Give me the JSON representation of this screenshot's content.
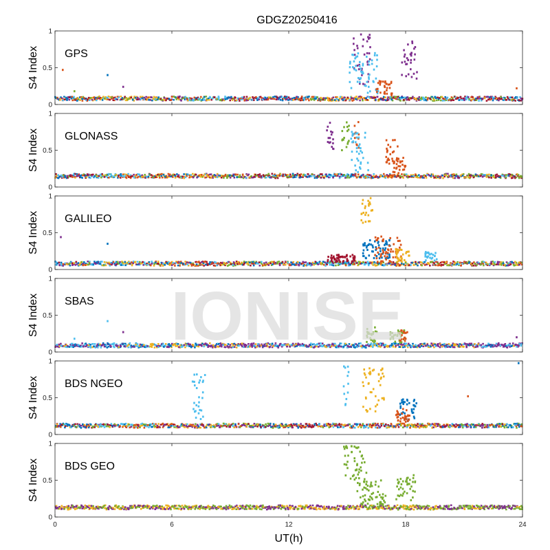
{
  "chart_data": {
    "type": "scatter",
    "title": "GDGZ20250416",
    "xlabel": "UT(h)",
    "ylabel": "S4 Index",
    "xlim": [
      0,
      24
    ],
    "ylim": [
      0,
      1
    ],
    "x_ticks": [
      "0",
      "6",
      "12",
      "18",
      "24"
    ],
    "y_ticks": [
      "0",
      "0.5",
      "1"
    ],
    "grid": false,
    "watermark": "IONISE",
    "series_colors": [
      "#0072BD",
      "#D95319",
      "#EDB120",
      "#7E2F8E",
      "#77AC30",
      "#4DBEEE",
      "#A2142F"
    ],
    "panels": [
      {
        "name": "GPS",
        "baseline": 0.08,
        "dominant_colors": [
          "#0072BD",
          "#D95319",
          "#EDB120",
          "#7E2F8E",
          "#77AC30",
          "#4DBEEE",
          "#A2142F"
        ],
        "spikes": [
          {
            "x": 0.4,
            "y": 0.47,
            "color": "#D95319"
          },
          {
            "x": 2.7,
            "y": 0.4,
            "color": "#0072BD"
          },
          {
            "x": 3.5,
            "y": 0.24,
            "color": "#7E2F8E"
          },
          {
            "x": 1.0,
            "y": 0.18,
            "color": "#77AC30"
          },
          {
            "x": 23.7,
            "y": 0.22,
            "color": "#D95319"
          }
        ],
        "events": [
          {
            "x0": 15.3,
            "x1": 16.2,
            "ymin": 0.2,
            "ymax": 0.97,
            "color": "#7E2F8E"
          },
          {
            "x0": 15.1,
            "x1": 16.6,
            "ymin": 0.15,
            "ymax": 0.72,
            "color": "#4DBEEE"
          },
          {
            "x0": 16.5,
            "x1": 17.3,
            "ymin": 0.12,
            "ymax": 0.32,
            "color": "#D95319"
          },
          {
            "x0": 17.8,
            "x1": 18.6,
            "ymin": 0.35,
            "ymax": 0.87,
            "color": "#7E2F8E"
          }
        ]
      },
      {
        "name": "GLONASS",
        "baseline": 0.15,
        "dominant_colors": [
          "#A2142F",
          "#0072BD",
          "#4DBEEE",
          "#D95319",
          "#EDB120",
          "#7E2F8E",
          "#77AC30"
        ],
        "spikes": [],
        "events": [
          {
            "x0": 13.9,
            "x1": 14.3,
            "ymin": 0.5,
            "ymax": 0.88,
            "color": "#7E2F8E"
          },
          {
            "x0": 14.7,
            "x1": 15.1,
            "ymin": 0.5,
            "ymax": 0.92,
            "color": "#77AC30"
          },
          {
            "x0": 15.3,
            "x1": 15.6,
            "ymin": 0.5,
            "ymax": 0.97,
            "color": "#D95319"
          },
          {
            "x0": 15.2,
            "x1": 16.1,
            "ymin": 0.2,
            "ymax": 0.75,
            "color": "#4DBEEE"
          },
          {
            "x0": 17.0,
            "x1": 17.6,
            "ymin": 0.3,
            "ymax": 0.65,
            "color": "#D95319"
          },
          {
            "x0": 17.3,
            "x1": 18.0,
            "ymin": 0.18,
            "ymax": 0.4,
            "color": "#D95319"
          }
        ]
      },
      {
        "name": "GALILEO",
        "baseline": 0.08,
        "dominant_colors": [
          "#7E2F8E",
          "#0072BD",
          "#4DBEEE",
          "#EDB120",
          "#D95319",
          "#A2142F",
          "#77AC30"
        ],
        "spikes": [
          {
            "x": 0.3,
            "y": 0.44,
            "color": "#7E2F8E"
          },
          {
            "x": 2.7,
            "y": 0.35,
            "color": "#0072BD"
          }
        ],
        "events": [
          {
            "x0": 15.7,
            "x1": 16.3,
            "ymin": 0.6,
            "ymax": 0.98,
            "color": "#EDB120"
          },
          {
            "x0": 15.8,
            "x1": 17.2,
            "ymin": 0.15,
            "ymax": 0.4,
            "color": "#0072BD"
          },
          {
            "x0": 16.4,
            "x1": 17.8,
            "ymin": 0.1,
            "ymax": 0.45,
            "color": "#D95319"
          },
          {
            "x0": 17.5,
            "x1": 18.2,
            "ymin": 0.1,
            "ymax": 0.28,
            "color": "#EDB120"
          },
          {
            "x0": 19.0,
            "x1": 19.6,
            "ymin": 0.12,
            "ymax": 0.25,
            "color": "#4DBEEE"
          },
          {
            "x0": 14.0,
            "x1": 15.4,
            "ymin": 0.1,
            "ymax": 0.2,
            "color": "#A2142F"
          }
        ]
      },
      {
        "name": "SBAS",
        "baseline": 0.09,
        "dominant_colors": [
          "#7E2F8E",
          "#4DBEEE",
          "#0072BD",
          "#EDB120",
          "#7E2F8E"
        ],
        "spikes": [
          {
            "x": 2.7,
            "y": 0.42,
            "color": "#4DBEEE"
          },
          {
            "x": 3.5,
            "y": 0.27,
            "color": "#7E2F8E"
          },
          {
            "x": 1.0,
            "y": 0.18,
            "color": "#4DBEEE"
          },
          {
            "x": 23.7,
            "y": 0.2,
            "color": "#7E2F8E"
          }
        ],
        "events": [
          {
            "x0": 16.0,
            "x1": 16.6,
            "ymin": 0.12,
            "ymax": 0.35,
            "color": "#77AC30"
          },
          {
            "x0": 17.2,
            "x1": 18.0,
            "ymin": 0.12,
            "ymax": 0.3,
            "color": "#77AC30"
          },
          {
            "x0": 17.7,
            "x1": 18.1,
            "ymin": 0.15,
            "ymax": 0.3,
            "color": "#D95319"
          }
        ]
      },
      {
        "name": "BDS NGEO",
        "baseline": 0.12,
        "dominant_colors": [
          "#0072BD",
          "#A2142F",
          "#4DBEEE",
          "#D95319",
          "#EDB120",
          "#7E2F8E",
          "#77AC30"
        ],
        "spikes": [
          {
            "x": 23.8,
            "y": 0.97,
            "color": "#0072BD"
          },
          {
            "x": 21.2,
            "y": 0.52,
            "color": "#D95319"
          }
        ],
        "events": [
          {
            "x0": 7.0,
            "x1": 7.7,
            "ymin": 0.18,
            "ymax": 0.85,
            "color": "#4DBEEE"
          },
          {
            "x0": 14.8,
            "x1": 15.1,
            "ymin": 0.4,
            "ymax": 0.98,
            "color": "#4DBEEE"
          },
          {
            "x0": 15.8,
            "x1": 16.9,
            "ymin": 0.3,
            "ymax": 0.9,
            "color": "#EDB120"
          },
          {
            "x0": 17.7,
            "x1": 18.6,
            "ymin": 0.15,
            "ymax": 0.48,
            "color": "#0072BD"
          },
          {
            "x0": 17.5,
            "x1": 18.2,
            "ymin": 0.15,
            "ymax": 0.35,
            "color": "#D95319"
          }
        ]
      },
      {
        "name": "BDS GEO",
        "baseline": 0.13,
        "dominant_colors": [
          "#7E2F8E",
          "#EDB120",
          "#77AC30"
        ],
        "spikes": [],
        "events": [
          {
            "x0": 14.8,
            "x1": 16.0,
            "ymin": 0.5,
            "ymax": 0.97,
            "color": "#77AC30"
          },
          {
            "x0": 15.5,
            "x1": 17.0,
            "ymin": 0.15,
            "ymax": 0.5,
            "color": "#77AC30"
          },
          {
            "x0": 17.5,
            "x1": 18.5,
            "ymin": 0.2,
            "ymax": 0.58,
            "color": "#77AC30"
          }
        ]
      }
    ]
  }
}
